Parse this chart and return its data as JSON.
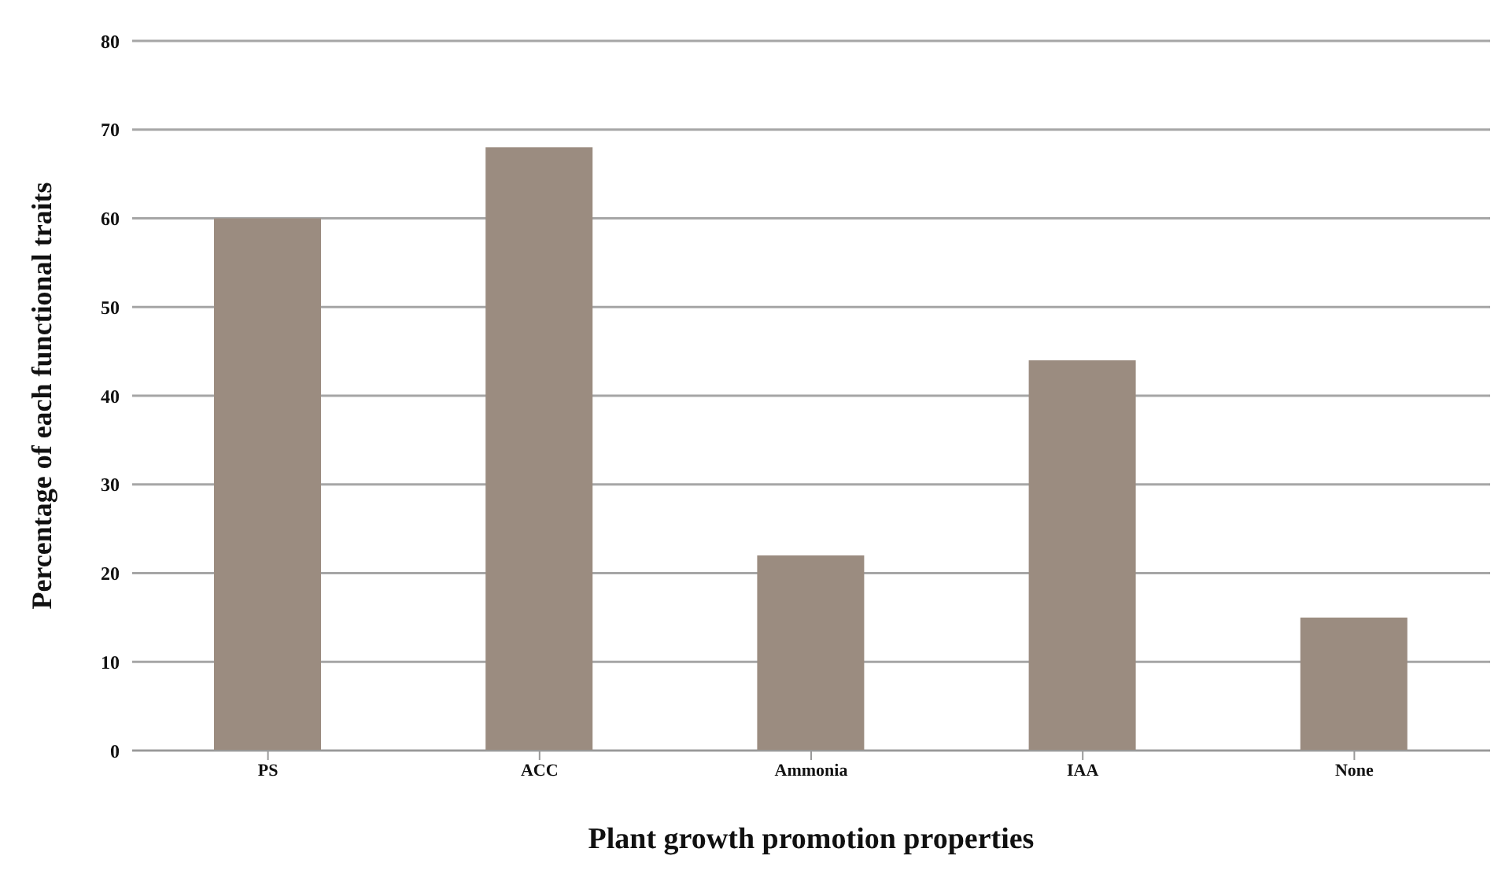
{
  "chart_data": {
    "type": "bar",
    "xlabel": "Plant growth promotion properties",
    "ylabel": "Percentage of each functional traits",
    "categories": [
      "PS",
      "ACC",
      "Ammonia",
      "IAA",
      "None"
    ],
    "values": [
      60,
      68,
      22,
      44,
      15
    ],
    "color": "#9b8c80",
    "ylim": [
      0,
      80
    ],
    "yticks": [
      0,
      10,
      20,
      30,
      40,
      50,
      60,
      70,
      80
    ],
    "grid": "y"
  }
}
